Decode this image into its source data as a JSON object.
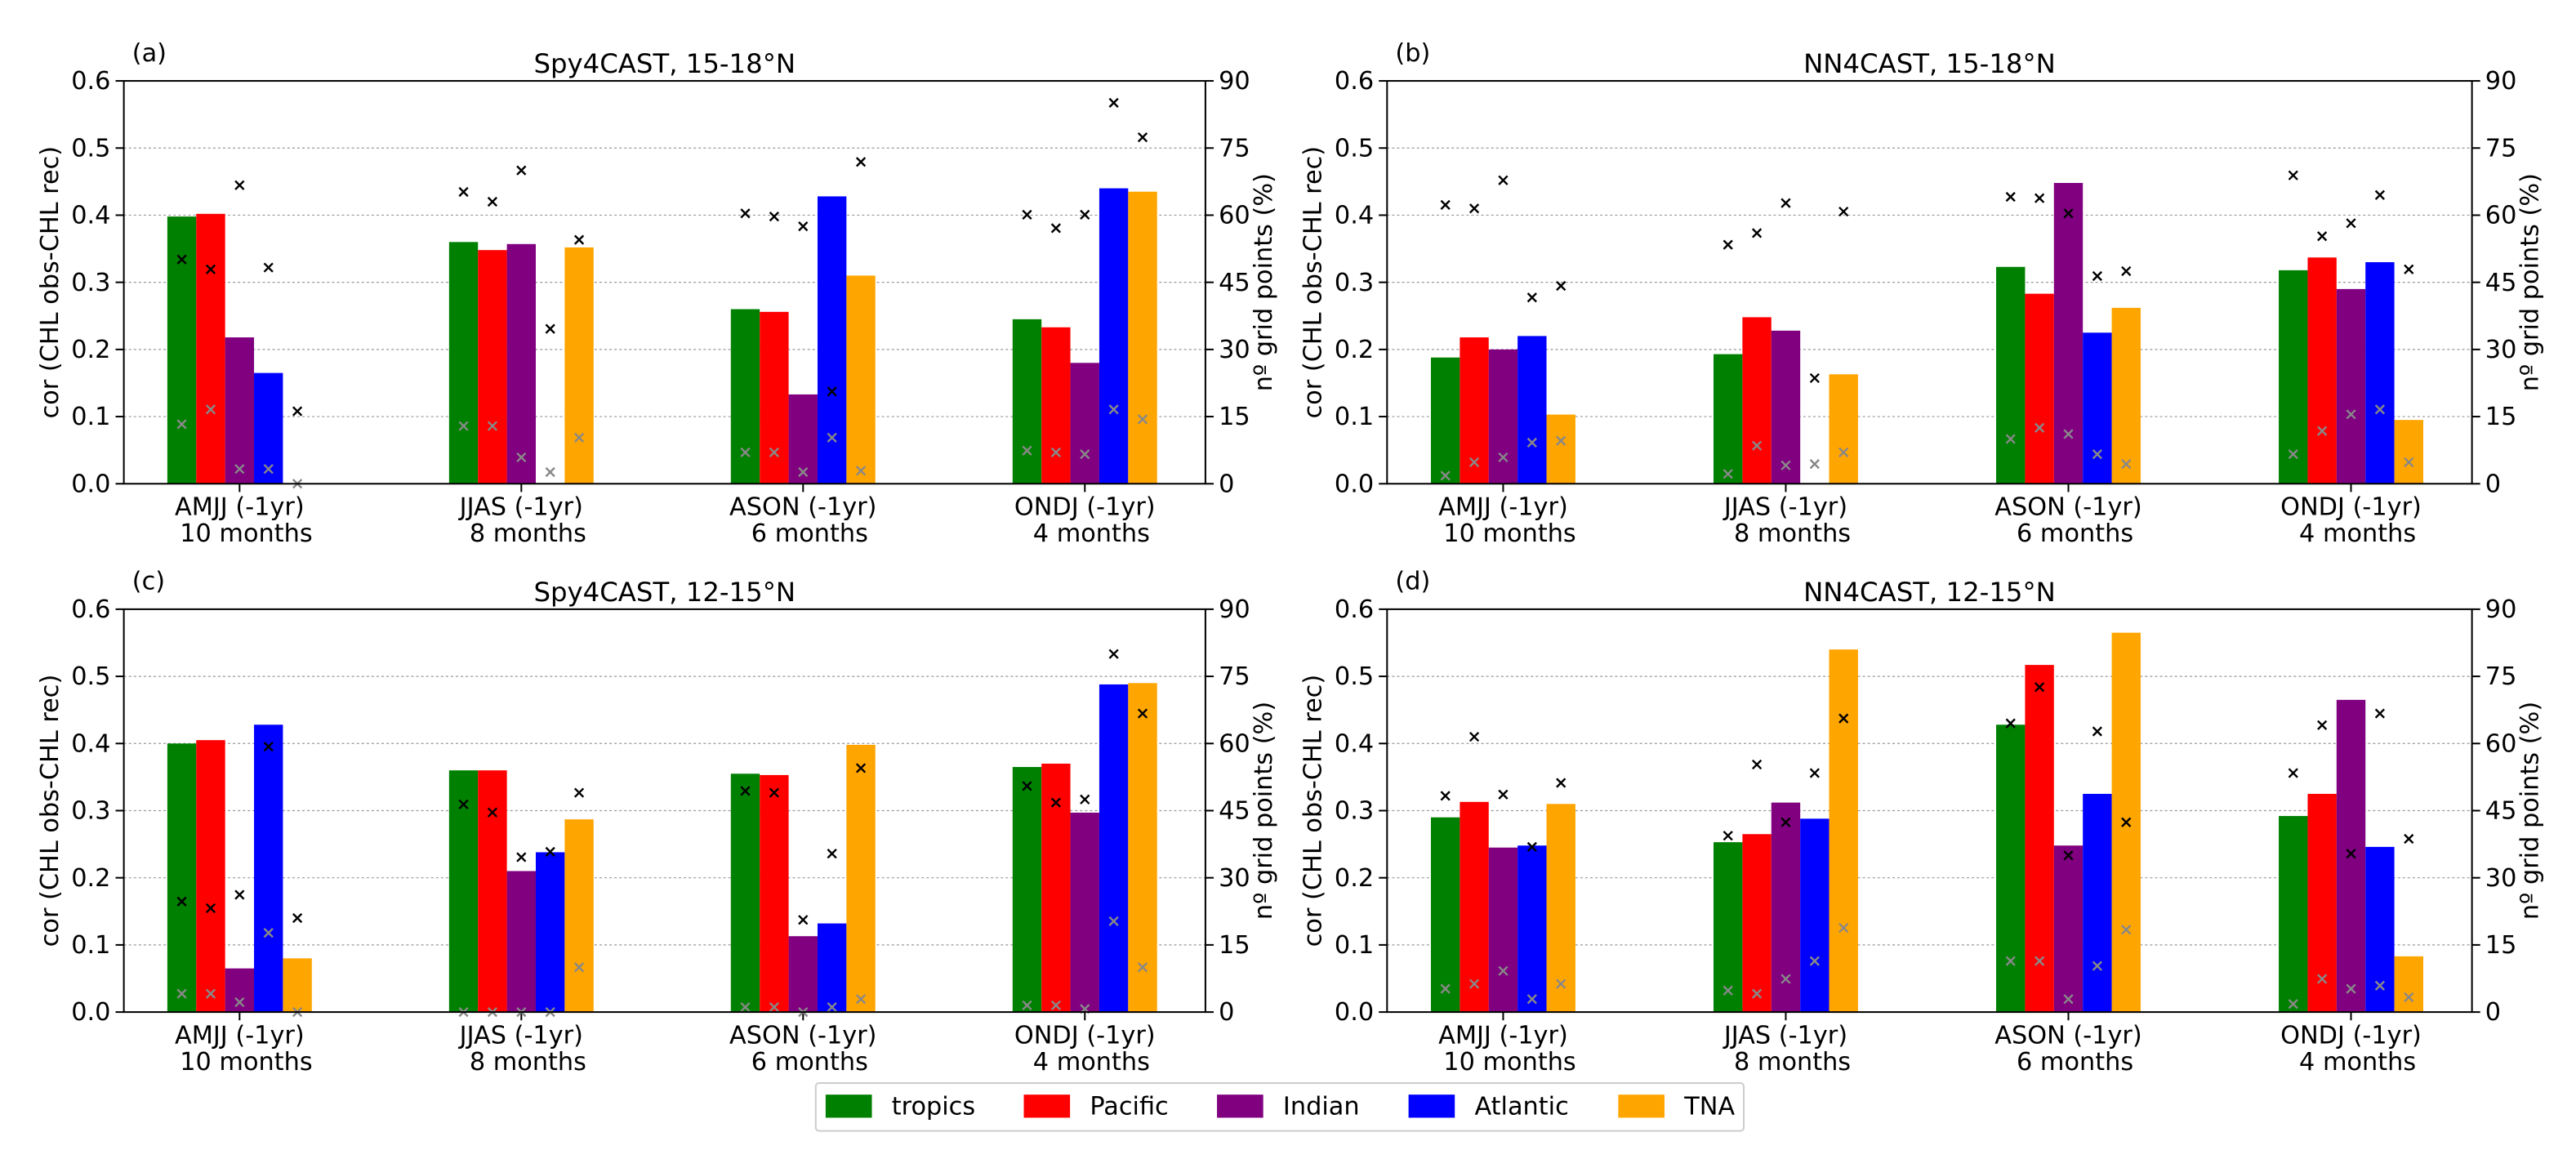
{
  "chart_data": [
    {
      "type": "bar",
      "panel_label": "(a)",
      "title": "Spy4CAST, 15-18°N",
      "categories": [
        "AMJJ (-1yr)",
        "JJAS (-1yr)",
        "ASON (-1yr)",
        "ONDJ (-1yr)"
      ],
      "category_notes": [
        "10 months",
        "8 months",
        "6 months",
        "4 months"
      ],
      "ylabel": "cor (CHL obs-CHL rec)",
      "y2label": "nº grid points (%)",
      "ylim": [
        0,
        0.6
      ],
      "yticks": [
        {
          "value": 0,
          "label": "0.0"
        },
        0.1,
        0.2,
        0.3,
        0.4,
        0.5,
        0.6
      ],
      "y2lim": [
        0,
        90
      ],
      "y2ticks": [
        0,
        15,
        30,
        45,
        60,
        75,
        90
      ],
      "grid": true,
      "series": [
        {
          "name": "tropics",
          "color": "#008000",
          "values": [
            0.398,
            0.36,
            0.26,
            0.245
          ],
          "markers": [
            {
              "color": "#000000",
              "axis": "y2",
              "values": [
                50.1,
                65.2,
                60.4,
                60.1
              ]
            },
            {
              "color": "#888888",
              "axis": "y2",
              "values": [
                13.3,
                12.9,
                7.0,
                7.4
              ]
            }
          ]
        },
        {
          "name": "Pacific",
          "color": "#ff0000",
          "values": [
            0.402,
            0.348,
            0.256,
            0.233
          ],
          "markers": [
            {
              "color": "#000000",
              "axis": "y2",
              "values": [
                47.9,
                63.0,
                59.7,
                57.1
              ]
            },
            {
              "color": "#888888",
              "axis": "y2",
              "values": [
                16.6,
                12.9,
                7.0,
                7.0
              ]
            }
          ]
        },
        {
          "name": "Indian",
          "color": "#800080",
          "values": [
            0.218,
            0.357,
            0.133,
            0.18
          ],
          "markers": [
            {
              "color": "#000000",
              "axis": "y2",
              "values": [
                66.7,
                70.0,
                57.5,
                60.1
              ]
            },
            {
              "color": "#888888",
              "axis": "y2",
              "values": [
                3.3,
                5.9,
                2.6,
                6.6
              ]
            }
          ]
        },
        {
          "name": "Atlantic",
          "color": "#0000ff",
          "values": [
            0.165,
            0,
            0.428,
            0.44
          ],
          "markers": [
            {
              "color": "#000000",
              "axis": "y2",
              "values": [
                48.3,
                34.6,
                20.6,
                85.1
              ]
            },
            {
              "color": "#888888",
              "axis": "y2",
              "values": [
                3.3,
                2.6,
                10.3,
                16.6
              ]
            }
          ]
        },
        {
          "name": "TNA",
          "color": "#ffa500",
          "values": [
            0,
            0.352,
            0.31,
            0.435
          ],
          "markers": [
            {
              "color": "#000000",
              "axis": "y2",
              "values": [
                16.2,
                54.5,
                71.9,
                77.4
              ]
            },
            {
              "color": "#888888",
              "axis": "y2",
              "values": [
                0,
                10.3,
                2.9,
                14.4
              ]
            }
          ]
        }
      ]
    },
    {
      "type": "bar",
      "panel_label": "(b)",
      "title": "NN4CAST, 15-18°N",
      "categories": [
        "AMJJ (-1yr)",
        "JJAS (-1yr)",
        "ASON (-1yr)",
        "ONDJ (-1yr)"
      ],
      "category_notes": [
        "10 months",
        "8 months",
        "6 months",
        "4 months"
      ],
      "ylabel": "cor (CHL obs-CHL rec)",
      "y2label": "nº grid points (%)",
      "ylim": [
        0,
        0.6
      ],
      "yticks": [
        {
          "value": 0,
          "label": "0.0"
        },
        0.1,
        0.2,
        0.3,
        0.4,
        0.5,
        0.6
      ],
      "y2lim": [
        0,
        90
      ],
      "y2ticks": [
        0,
        15,
        30,
        45,
        60,
        75,
        90
      ],
      "grid": true,
      "series": [
        {
          "name": "tropics",
          "color": "#008000",
          "values": [
            0.188,
            0.193,
            0.323,
            0.318
          ],
          "markers": [
            {
              "color": "#000000",
              "axis": "y2",
              "values": [
                62.3,
                53.4,
                64.1,
                68.9
              ]
            },
            {
              "color": "#888888",
              "axis": "y2",
              "values": [
                1.8,
                2.2,
                10.0,
                6.6
              ]
            }
          ]
        },
        {
          "name": "Pacific",
          "color": "#ff0000",
          "values": [
            0.218,
            0.248,
            0.283,
            0.337
          ],
          "markers": [
            {
              "color": "#000000",
              "axis": "y2",
              "values": [
                61.5,
                56.0,
                63.8,
                55.3
              ]
            },
            {
              "color": "#888888",
              "axis": "y2",
              "values": [
                4.8,
                8.5,
                12.5,
                11.8
              ]
            }
          ]
        },
        {
          "name": "Indian",
          "color": "#800080",
          "values": [
            0.2,
            0.228,
            0.448,
            0.29
          ],
          "markers": [
            {
              "color": "#000000",
              "axis": "y2",
              "values": [
                67.8,
                62.7,
                60.4,
                58.2
              ]
            },
            {
              "color": "#888888",
              "axis": "y2",
              "values": [
                5.9,
                4.1,
                11.1,
                15.5
              ]
            }
          ]
        },
        {
          "name": "Atlantic",
          "color": "#0000ff",
          "values": [
            0.22,
            0,
            0.225,
            0.33
          ],
          "markers": [
            {
              "color": "#000000",
              "axis": "y2",
              "values": [
                41.6,
                23.6,
                46.4,
                64.5
              ]
            },
            {
              "color": "#888888",
              "axis": "y2",
              "values": [
                9.2,
                4.4,
                6.6,
                16.6
              ]
            }
          ]
        },
        {
          "name": "TNA",
          "color": "#ffa500",
          "values": [
            0.103,
            0.163,
            0.262,
            0.095
          ],
          "markers": [
            {
              "color": "#000000",
              "axis": "y2",
              "values": [
                44.2,
                60.8,
                47.5,
                47.9
              ]
            },
            {
              "color": "#888888",
              "axis": "y2",
              "values": [
                9.6,
                7.0,
                4.4,
                4.8
              ]
            }
          ]
        }
      ]
    },
    {
      "type": "bar",
      "panel_label": "(c)",
      "title": "Spy4CAST, 12-15°N",
      "categories": [
        "AMJJ (-1yr)",
        "JJAS (-1yr)",
        "ASON (-1yr)",
        "ONDJ (-1yr)"
      ],
      "category_notes": [
        "10 months",
        "8 months",
        "6 months",
        "4 months"
      ],
      "ylabel": "cor (CHL obs-CHL rec)",
      "y2label": "nº grid points (%)",
      "ylim": [
        0,
        0.6
      ],
      "yticks": [
        {
          "value": 0,
          "label": "0.0"
        },
        0.1,
        0.2,
        0.3,
        0.4,
        0.5,
        0.6
      ],
      "y2lim": [
        0,
        90
      ],
      "y2ticks": [
        0,
        15,
        30,
        45,
        60,
        75,
        90
      ],
      "grid": true,
      "series": [
        {
          "name": "tropics",
          "color": "#008000",
          "values": [
            0.4,
            0.36,
            0.355,
            0.365
          ],
          "markers": [
            {
              "color": "#000000",
              "axis": "y2",
              "values": [
                24.7,
                46.4,
                49.4,
                50.5
              ]
            },
            {
              "color": "#888888",
              "axis": "y2",
              "values": [
                4.1,
                0,
                1.1,
                1.5
              ]
            }
          ]
        },
        {
          "name": "Pacific",
          "color": "#ff0000",
          "values": [
            0.405,
            0.36,
            0.353,
            0.37
          ],
          "markers": [
            {
              "color": "#000000",
              "axis": "y2",
              "values": [
                23.2,
                44.6,
                49.0,
                46.8
              ]
            },
            {
              "color": "#888888",
              "axis": "y2",
              "values": [
                4.1,
                0,
                1.1,
                1.5
              ]
            }
          ]
        },
        {
          "name": "Indian",
          "color": "#800080",
          "values": [
            0.065,
            0.21,
            0.113,
            0.297
          ],
          "markers": [
            {
              "color": "#000000",
              "axis": "y2",
              "values": [
                26.2,
                34.6,
                20.6,
                47.5
              ]
            },
            {
              "color": "#888888",
              "axis": "y2",
              "values": [
                2.2,
                0,
                0,
                0.7
              ]
            }
          ]
        },
        {
          "name": "Atlantic",
          "color": "#0000ff",
          "values": [
            0.428,
            0.238,
            0.132,
            0.488
          ],
          "markers": [
            {
              "color": "#000000",
              "axis": "y2",
              "values": [
                59.3,
                35.8,
                35.4,
                80.0
              ]
            },
            {
              "color": "#888888",
              "axis": "y2",
              "values": [
                17.7,
                0,
                1.1,
                20.3
              ]
            }
          ]
        },
        {
          "name": "TNA",
          "color": "#ffa500",
          "values": [
            0.08,
            0.287,
            0.398,
            0.49
          ],
          "markers": [
            {
              "color": "#000000",
              "axis": "y2",
              "values": [
                21.0,
                49.0,
                54.5,
                66.7
              ]
            },
            {
              "color": "#888888",
              "axis": "y2",
              "values": [
                0,
                10.0,
                2.9,
                10.0
              ]
            }
          ]
        }
      ]
    },
    {
      "type": "bar",
      "panel_label": "(d)",
      "title": "NN4CAST, 12-15°N",
      "categories": [
        "AMJJ (-1yr)",
        "JJAS (-1yr)",
        "ASON (-1yr)",
        "ONDJ (-1yr)"
      ],
      "category_notes": [
        "10 months",
        "8 months",
        "6 months",
        "4 months"
      ],
      "ylabel": "cor (CHL obs-CHL rec)",
      "y2label": "nº grid points (%)",
      "ylim": [
        0,
        0.6
      ],
      "yticks": [
        {
          "value": 0,
          "label": "0.0"
        },
        0.1,
        0.2,
        0.3,
        0.4,
        0.5,
        0.6
      ],
      "y2lim": [
        0,
        90
      ],
      "y2ticks": [
        0,
        15,
        30,
        45,
        60,
        75,
        90
      ],
      "grid": true,
      "series": [
        {
          "name": "tropics",
          "color": "#008000",
          "values": [
            0.29,
            0.253,
            0.428,
            0.292
          ],
          "markers": [
            {
              "color": "#000000",
              "axis": "y2",
              "values": [
                48.3,
                39.4,
                64.5,
                53.4
              ]
            },
            {
              "color": "#888888",
              "axis": "y2",
              "values": [
                5.2,
                4.8,
                11.4,
                1.8
              ]
            }
          ]
        },
        {
          "name": "Pacific",
          "color": "#ff0000",
          "values": [
            0.313,
            0.265,
            0.517,
            0.325
          ],
          "markers": [
            {
              "color": "#000000",
              "axis": "y2",
              "values": [
                61.5,
                55.3,
                72.6,
                64.1
              ]
            },
            {
              "color": "#888888",
              "axis": "y2",
              "values": [
                6.3,
                4.1,
                11.4,
                7.4
              ]
            }
          ]
        },
        {
          "name": "Indian",
          "color": "#800080",
          "values": [
            0.245,
            0.312,
            0.248,
            0.465
          ],
          "markers": [
            {
              "color": "#000000",
              "axis": "y2",
              "values": [
                48.6,
                42.4,
                35.0,
                35.4
              ]
            },
            {
              "color": "#888888",
              "axis": "y2",
              "values": [
                9.2,
                7.4,
                2.9,
                5.2
              ]
            }
          ]
        },
        {
          "name": "Atlantic",
          "color": "#0000ff",
          "values": [
            0.248,
            0.288,
            0.325,
            0.246
          ],
          "markers": [
            {
              "color": "#000000",
              "axis": "y2",
              "values": [
                36.9,
                53.4,
                62.7,
                66.7
              ]
            },
            {
              "color": "#888888",
              "axis": "y2",
              "values": [
                2.9,
                11.4,
                10.3,
                5.9
              ]
            }
          ]
        },
        {
          "name": "TNA",
          "color": "#ffa500",
          "values": [
            0.31,
            0.54,
            0.565,
            0.083
          ],
          "markers": [
            {
              "color": "#000000",
              "axis": "y2",
              "values": [
                51.2,
                65.6,
                42.4,
                38.7
              ]
            },
            {
              "color": "#888888",
              "axis": "y2",
              "values": [
                6.3,
                18.8,
                18.4,
                3.3
              ]
            }
          ]
        }
      ]
    }
  ]
}
